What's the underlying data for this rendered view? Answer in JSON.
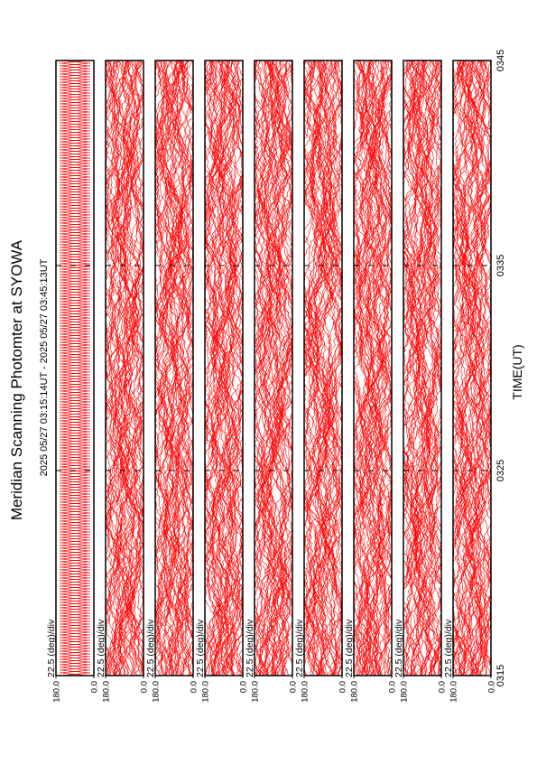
{
  "chart_data": {
    "type": "stacked-traces",
    "title": "Meridian Scanning Photomter at SYOWA",
    "subtitle": "2025 05/27 03:15:14UT - 2025 05/27 03:45:13UT",
    "x_label": "TIME(UT)",
    "xlim": [
      315,
      345
    ],
    "xticks": [
      {
        "value": 315,
        "label": "0315"
      },
      {
        "value": 325,
        "label": "0325"
      },
      {
        "value": 335,
        "label": "0335"
      },
      {
        "value": 345,
        "label": "0345"
      }
    ],
    "ylim": [
      0,
      180
    ],
    "yticks": [
      {
        "value": 0,
        "label": "0.0"
      },
      {
        "value": 180,
        "label": "180.0"
      }
    ],
    "color": "#ff0000",
    "panels": [
      {
        "scale_label": "22.5 (deg)/div"
      },
      {
        "scale_label": "22.5 (deg)/div"
      },
      {
        "scale_label": "22.5 (deg)/div"
      },
      {
        "scale_label": "22.5 (deg)/div"
      },
      {
        "scale_label": "22.5 (deg)/div"
      },
      {
        "scale_label": "22.5 (deg)/div"
      },
      {
        "scale_label": "22.5 (deg)/div"
      },
      {
        "scale_label": "22.5 (deg)/div"
      },
      {
        "scale_label": "22.5 (deg)/div"
      }
    ]
  }
}
